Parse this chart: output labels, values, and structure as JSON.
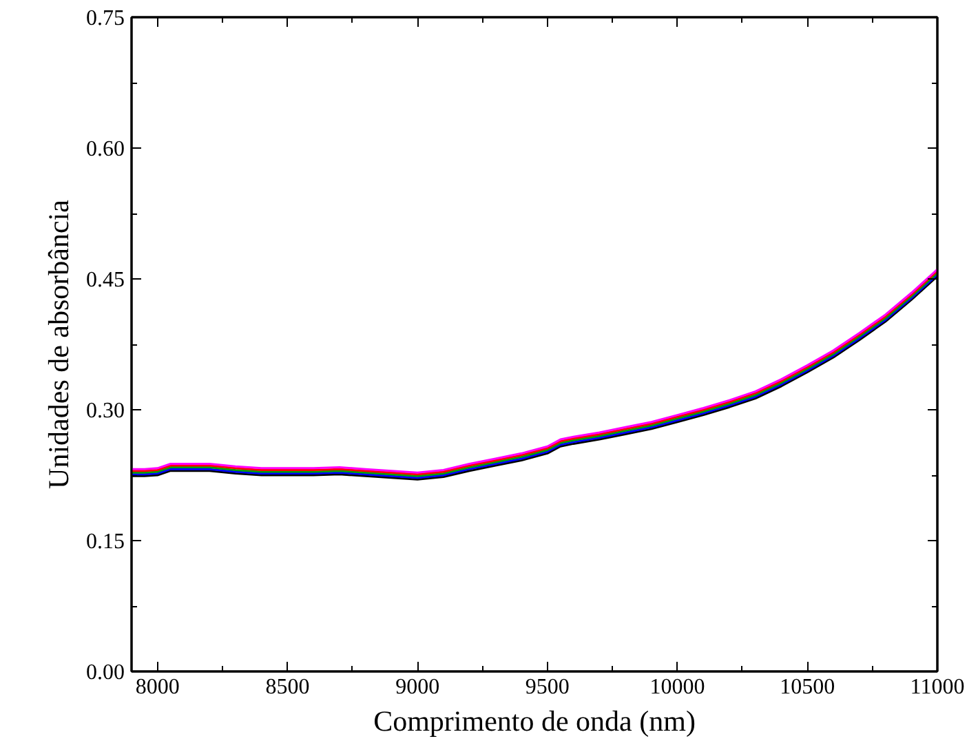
{
  "chart_data": {
    "type": "line",
    "xlabel": "Comprimento de onda (nm)",
    "ylabel": "Unidades de absorbância",
    "x": [
      7900,
      7950,
      8000,
      8050,
      8100,
      8200,
      8300,
      8400,
      8500,
      8600,
      8700,
      8800,
      8900,
      9000,
      9100,
      9200,
      9300,
      9400,
      9500,
      9550,
      9600,
      9700,
      9800,
      9900,
      10000,
      10100,
      10200,
      10300,
      10400,
      10500,
      10600,
      10700,
      10800,
      10900,
      11000
    ],
    "series": [
      {
        "color": "#000000",
        "values": [
          0.224,
          0.224,
          0.225,
          0.23,
          0.23,
          0.23,
          0.227,
          0.225,
          0.225,
          0.225,
          0.226,
          0.224,
          0.222,
          0.22,
          0.223,
          0.23,
          0.236,
          0.242,
          0.25,
          0.258,
          0.261,
          0.266,
          0.272,
          0.278,
          0.286,
          0.294,
          0.303,
          0.313,
          0.327,
          0.343,
          0.36,
          0.38,
          0.401,
          0.426,
          0.453
        ]
      },
      {
        "color": "#0000ff",
        "values": [
          0.226,
          0.226,
          0.227,
          0.232,
          0.232,
          0.232,
          0.229,
          0.227,
          0.227,
          0.227,
          0.228,
          0.226,
          0.224,
          0.222,
          0.225,
          0.232,
          0.238,
          0.244,
          0.252,
          0.26,
          0.263,
          0.268,
          0.274,
          0.28,
          0.288,
          0.296,
          0.305,
          0.315,
          0.329,
          0.345,
          0.362,
          0.382,
          0.403,
          0.428,
          0.455
        ]
      },
      {
        "color": "#00a000",
        "values": [
          0.228,
          0.228,
          0.229,
          0.234,
          0.234,
          0.234,
          0.231,
          0.229,
          0.229,
          0.229,
          0.23,
          0.228,
          0.226,
          0.224,
          0.227,
          0.234,
          0.24,
          0.246,
          0.254,
          0.262,
          0.265,
          0.27,
          0.276,
          0.282,
          0.29,
          0.298,
          0.307,
          0.317,
          0.331,
          0.347,
          0.364,
          0.384,
          0.405,
          0.43,
          0.457
        ]
      },
      {
        "color": "#ff0000",
        "values": [
          0.23,
          0.23,
          0.231,
          0.236,
          0.236,
          0.236,
          0.233,
          0.231,
          0.231,
          0.231,
          0.232,
          0.23,
          0.228,
          0.226,
          0.229,
          0.236,
          0.242,
          0.248,
          0.256,
          0.264,
          0.267,
          0.272,
          0.278,
          0.284,
          0.292,
          0.3,
          0.309,
          0.319,
          0.333,
          0.349,
          0.366,
          0.386,
          0.407,
          0.432,
          0.459
        ]
      },
      {
        "color": "#ff00ff",
        "values": [
          0.232,
          0.232,
          0.233,
          0.238,
          0.238,
          0.238,
          0.235,
          0.233,
          0.233,
          0.233,
          0.234,
          0.232,
          0.23,
          0.228,
          0.231,
          0.238,
          0.244,
          0.25,
          0.258,
          0.266,
          0.269,
          0.274,
          0.28,
          0.286,
          0.294,
          0.302,
          0.311,
          0.321,
          0.335,
          0.351,
          0.368,
          0.388,
          0.409,
          0.434,
          0.461
        ]
      }
    ],
    "xlim": [
      7900,
      11000
    ],
    "xticks": [
      8000,
      8500,
      9000,
      9500,
      10000,
      10500,
      11000
    ],
    "ylim": [
      0,
      0.75
    ],
    "yticks": [
      {
        "value": 0,
        "label": "0.00"
      },
      {
        "value": 0.15,
        "label": "0.15"
      },
      {
        "value": 0.3,
        "label": "0.30"
      },
      {
        "value": 0.45,
        "label": "0.45"
      },
      {
        "value": 0.6,
        "label": "0.60"
      },
      {
        "value": 0.75,
        "label": "0.75"
      }
    ],
    "grid": false,
    "marker": "none",
    "line_style": "solid"
  }
}
